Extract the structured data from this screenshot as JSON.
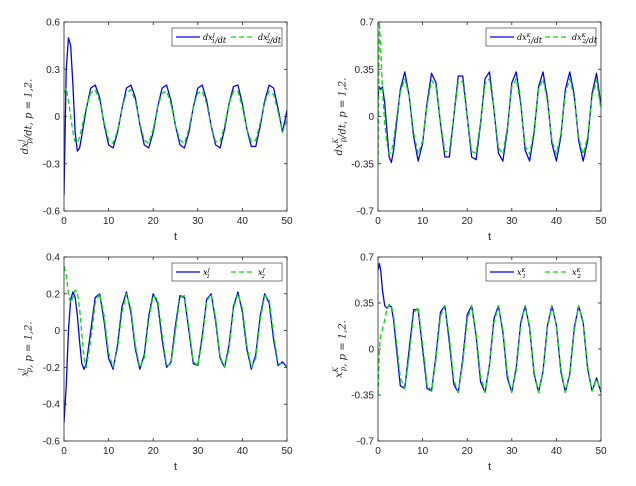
{
  "colors": {
    "series1": "#0000ff",
    "series2": "#00e000",
    "axis": "#262626"
  },
  "chart_data": [
    {
      "type": "line",
      "xlabel": "t",
      "ylabel": "dx_p^J/dt, p = 1,2.",
      "xlim": [
        0,
        50
      ],
      "ylim": [
        -0.6,
        0.6
      ],
      "xticks": [
        "0",
        "10",
        "20",
        "30",
        "40",
        "50"
      ],
      "yticks": [
        "-0.6",
        "-0.3",
        "0",
        "0.3",
        "0.6"
      ],
      "legend_position": "top-right",
      "series": [
        {
          "name": "dx_1^J/dt",
          "style": "solid",
          "x": [
            0,
            0.5,
            1,
            1.5,
            2,
            2.5,
            3,
            3.5,
            4,
            5,
            6,
            7,
            8,
            9,
            10,
            11,
            12,
            13,
            14,
            15,
            16,
            17,
            18,
            19,
            20,
            21,
            22,
            23,
            24,
            25,
            26,
            27,
            28,
            29,
            30,
            31,
            32,
            33,
            34,
            35,
            36,
            37,
            38,
            39,
            40,
            41,
            42,
            43,
            44,
            45,
            46,
            47,
            48,
            49,
            50
          ],
          "y": [
            -0.5,
            0.3,
            0.5,
            0.45,
            0.2,
            -0.1,
            -0.22,
            -0.2,
            -0.12,
            0.05,
            0.18,
            0.2,
            0.12,
            -0.05,
            -0.18,
            -0.2,
            -0.1,
            0.05,
            0.18,
            0.2,
            0.12,
            -0.05,
            -0.18,
            -0.2,
            -0.1,
            0.06,
            0.18,
            0.2,
            0.1,
            -0.06,
            -0.18,
            -0.2,
            -0.1,
            0.06,
            0.18,
            0.2,
            0.1,
            -0.06,
            -0.18,
            -0.2,
            -0.08,
            0.08,
            0.19,
            0.2,
            0.08,
            -0.08,
            -0.19,
            -0.19,
            -0.06,
            0.1,
            0.2,
            0.18,
            0.05,
            -0.1,
            0.04
          ]
        },
        {
          "name": "dx_2^J/dt",
          "style": "dashed",
          "x": [
            0,
            0.5,
            1,
            1.5,
            2,
            2.5,
            3,
            3.5,
            4,
            5,
            6,
            7,
            8,
            9,
            10,
            11,
            12,
            13,
            14,
            15,
            16,
            17,
            18,
            19,
            20,
            21,
            22,
            23,
            24,
            25,
            26,
            27,
            28,
            29,
            30,
            31,
            32,
            33,
            34,
            35,
            36,
            37,
            38,
            39,
            40,
            41,
            42,
            43,
            44,
            45,
            46,
            47,
            48,
            49,
            50
          ],
          "y": [
            0.15,
            0.18,
            0.1,
            0.0,
            -0.1,
            -0.16,
            -0.17,
            -0.13,
            -0.07,
            0.06,
            0.15,
            0.17,
            0.1,
            -0.04,
            -0.15,
            -0.17,
            -0.09,
            0.05,
            0.15,
            0.17,
            0.1,
            -0.04,
            -0.15,
            -0.17,
            -0.08,
            0.06,
            0.15,
            0.16,
            0.08,
            -0.06,
            -0.15,
            -0.17,
            -0.08,
            0.06,
            0.15,
            0.16,
            0.08,
            -0.06,
            -0.16,
            -0.16,
            -0.06,
            0.08,
            0.16,
            0.16,
            0.06,
            -0.08,
            -0.16,
            -0.15,
            -0.04,
            0.09,
            0.16,
            0.14,
            0.03,
            -0.1,
            -0.02
          ]
        }
      ]
    },
    {
      "type": "line",
      "xlabel": "t",
      "ylabel": "dx_p^K/dt, p = 1,2.",
      "xlim": [
        0,
        50
      ],
      "ylim": [
        -0.7,
        0.7
      ],
      "xticks": [
        "0",
        "10",
        "20",
        "30",
        "40",
        "50"
      ],
      "yticks": [
        "-0.7",
        "-0.35",
        "0",
        "0.35",
        "0.7"
      ],
      "legend_position": "top-right",
      "series": [
        {
          "name": "dx_1^K/dt",
          "style": "solid",
          "x": [
            0,
            0.3,
            0.6,
            1,
            1.5,
            2,
            2.5,
            3,
            3.5,
            4,
            5,
            6,
            7,
            8,
            9,
            10,
            11,
            12,
            13,
            14,
            15,
            16,
            17,
            18,
            19,
            20,
            21,
            22,
            23,
            24,
            25,
            26,
            27,
            28,
            29,
            30,
            31,
            32,
            33,
            34,
            35,
            36,
            37,
            38,
            39,
            40,
            41,
            42,
            43,
            44,
            45,
            46,
            47,
            48,
            49,
            50
          ],
          "y": [
            0.15,
            0.22,
            0.2,
            0.22,
            0.1,
            -0.1,
            -0.3,
            -0.34,
            -0.25,
            -0.1,
            0.2,
            0.33,
            0.15,
            -0.15,
            -0.33,
            -0.2,
            0.1,
            0.32,
            0.25,
            -0.05,
            -0.3,
            -0.3,
            0.0,
            0.3,
            0.3,
            0.0,
            -0.3,
            -0.32,
            -0.05,
            0.28,
            0.33,
            0.05,
            -0.27,
            -0.33,
            -0.1,
            0.25,
            0.33,
            0.1,
            -0.25,
            -0.33,
            -0.12,
            0.22,
            0.33,
            0.13,
            -0.2,
            -0.33,
            -0.15,
            0.2,
            0.33,
            0.16,
            -0.18,
            -0.33,
            -0.18,
            0.17,
            0.32,
            0.08
          ]
        },
        {
          "name": "dx_2^K/dt",
          "style": "dashed",
          "x": [
            0,
            0.3,
            0.6,
            1,
            1.5,
            2,
            2.5,
            3,
            3.5,
            4,
            5,
            6,
            7,
            8,
            9,
            10,
            11,
            12,
            13,
            14,
            15,
            16,
            17,
            18,
            19,
            20,
            21,
            22,
            23,
            24,
            25,
            26,
            27,
            28,
            29,
            30,
            31,
            32,
            33,
            34,
            35,
            36,
            37,
            38,
            39,
            40,
            41,
            42,
            43,
            44,
            45,
            46,
            47,
            48,
            49,
            50
          ],
          "y": [
            -0.35,
            0.7,
            0.5,
            0.2,
            -0.05,
            -0.2,
            -0.28,
            -0.26,
            -0.18,
            -0.05,
            0.18,
            0.28,
            0.15,
            -0.12,
            -0.28,
            -0.18,
            0.08,
            0.27,
            0.22,
            -0.04,
            -0.26,
            -0.26,
            0.0,
            0.26,
            0.26,
            0.0,
            -0.26,
            -0.27,
            -0.04,
            0.24,
            0.28,
            0.05,
            -0.23,
            -0.28,
            -0.08,
            0.22,
            0.28,
            0.09,
            -0.22,
            -0.28,
            -0.1,
            0.2,
            0.28,
            0.11,
            -0.18,
            -0.28,
            -0.13,
            0.17,
            0.28,
            0.14,
            -0.16,
            -0.28,
            -0.15,
            0.15,
            0.27,
            0.05
          ]
        }
      ]
    },
    {
      "type": "line",
      "xlabel": "t",
      "ylabel": "x_p^J, p = 1,2.",
      "xlim": [
        0,
        50
      ],
      "ylim": [
        -0.6,
        0.4
      ],
      "xticks": [
        "0",
        "10",
        "20",
        "30",
        "40",
        "50"
      ],
      "yticks": [
        "-0.6",
        "-0.4",
        "-0.2",
        "0",
        "0.2",
        "0.4"
      ],
      "legend_position": "top-right",
      "series": [
        {
          "name": "x_1^J",
          "style": "solid",
          "x": [
            0,
            0.5,
            1,
            1.5,
            2,
            2.5,
            3,
            3.5,
            4,
            4.5,
            5,
            6,
            7,
            8,
            9,
            10,
            11,
            12,
            13,
            14,
            15,
            16,
            17,
            18,
            19,
            20,
            21,
            22,
            23,
            24,
            25,
            26,
            27,
            28,
            29,
            30,
            31,
            32,
            33,
            34,
            35,
            36,
            37,
            38,
            39,
            40,
            41,
            42,
            43,
            44,
            45,
            46,
            47,
            48,
            49,
            50
          ],
          "y": [
            -0.5,
            -0.3,
            0.0,
            0.17,
            0.21,
            0.18,
            0.08,
            -0.06,
            -0.18,
            -0.21,
            -0.18,
            0.0,
            0.18,
            0.2,
            0.05,
            -0.15,
            -0.21,
            -0.08,
            0.13,
            0.21,
            0.1,
            -0.1,
            -0.21,
            -0.13,
            0.08,
            0.2,
            0.15,
            -0.05,
            -0.2,
            -0.17,
            0.03,
            0.19,
            0.18,
            0.0,
            -0.18,
            -0.19,
            -0.03,
            0.17,
            0.2,
            0.05,
            -0.15,
            -0.2,
            -0.08,
            0.13,
            0.21,
            0.1,
            -0.1,
            -0.21,
            -0.13,
            0.08,
            0.2,
            0.15,
            -0.05,
            -0.19,
            -0.17,
            -0.2
          ]
        },
        {
          "name": "x_2^J",
          "style": "dashed",
          "x": [
            0,
            0.5,
            1,
            1.5,
            2,
            2.5,
            3,
            3.5,
            4,
            4.5,
            5,
            6,
            7,
            8,
            9,
            10,
            11,
            12,
            13,
            14,
            15,
            16,
            17,
            18,
            19,
            20,
            21,
            22,
            23,
            24,
            25,
            26,
            27,
            28,
            29,
            30,
            31,
            32,
            33,
            34,
            35,
            36,
            37,
            38,
            39,
            40,
            41,
            42,
            43,
            44,
            45,
            46,
            47,
            48,
            49,
            50
          ],
          "y": [
            0.35,
            0.3,
            0.2,
            0.15,
            0.18,
            0.22,
            0.21,
            0.12,
            -0.02,
            -0.15,
            -0.2,
            -0.05,
            0.15,
            0.2,
            0.08,
            -0.12,
            -0.2,
            -0.1,
            0.1,
            0.2,
            0.12,
            -0.08,
            -0.2,
            -0.15,
            0.06,
            0.19,
            0.17,
            -0.02,
            -0.19,
            -0.18,
            0.0,
            0.18,
            0.19,
            0.02,
            -0.17,
            -0.19,
            -0.05,
            0.16,
            0.2,
            0.07,
            -0.14,
            -0.2,
            -0.1,
            0.12,
            0.2,
            0.12,
            -0.08,
            -0.2,
            -0.15,
            0.06,
            0.19,
            0.17,
            -0.02,
            -0.18,
            -0.18,
            -0.2
          ]
        }
      ]
    },
    {
      "type": "line",
      "xlabel": "t",
      "ylabel": "x_p^K, p = 1,2.",
      "xlim": [
        0,
        50
      ],
      "ylim": [
        -0.7,
        0.7
      ],
      "xticks": [
        "0",
        "10",
        "20",
        "30",
        "40",
        "50"
      ],
      "yticks": [
        "-0.7",
        "-0.35",
        "0",
        "0.35",
        "0.7"
      ],
      "legend_position": "top-right",
      "series": [
        {
          "name": "x_1^K",
          "style": "solid",
          "x": [
            0,
            0.3,
            0.6,
            1,
            1.5,
            2,
            2.5,
            3,
            3.5,
            4,
            5,
            6,
            7,
            8,
            9,
            10,
            11,
            12,
            13,
            14,
            15,
            16,
            17,
            18,
            19,
            20,
            21,
            22,
            23,
            24,
            25,
            26,
            27,
            28,
            29,
            30,
            31,
            32,
            33,
            34,
            35,
            36,
            37,
            38,
            39,
            40,
            41,
            42,
            43,
            44,
            45,
            46,
            47,
            48,
            49,
            50
          ],
          "y": [
            0.6,
            0.65,
            0.6,
            0.45,
            0.33,
            0.31,
            0.33,
            0.32,
            0.22,
            0.05,
            -0.28,
            -0.3,
            0.0,
            0.3,
            0.3,
            0.0,
            -0.3,
            -0.32,
            -0.05,
            0.28,
            0.33,
            0.05,
            -0.27,
            -0.33,
            -0.08,
            0.26,
            0.33,
            0.1,
            -0.25,
            -0.33,
            -0.12,
            0.23,
            0.33,
            0.13,
            -0.22,
            -0.33,
            -0.14,
            0.2,
            0.33,
            0.16,
            -0.19,
            -0.33,
            -0.17,
            0.18,
            0.33,
            0.18,
            -0.17,
            -0.33,
            -0.19,
            0.16,
            0.33,
            0.2,
            -0.15,
            -0.32,
            -0.22,
            -0.33
          ]
        },
        {
          "name": "x_2^K",
          "style": "dashed",
          "x": [
            0,
            0.3,
            0.6,
            1,
            1.5,
            2,
            2.5,
            3,
            3.5,
            4,
            5,
            6,
            7,
            8,
            9,
            10,
            11,
            12,
            13,
            14,
            15,
            16,
            17,
            18,
            19,
            20,
            21,
            22,
            23,
            24,
            25,
            26,
            27,
            28,
            29,
            30,
            31,
            32,
            33,
            34,
            35,
            36,
            37,
            38,
            39,
            40,
            41,
            42,
            43,
            44,
            45,
            46,
            47,
            48,
            49,
            50
          ],
          "y": [
            -0.35,
            0.0,
            0.1,
            0.15,
            0.22,
            0.3,
            0.34,
            0.33,
            0.25,
            0.1,
            -0.22,
            -0.3,
            -0.05,
            0.27,
            0.32,
            0.04,
            -0.27,
            -0.32,
            -0.08,
            0.25,
            0.33,
            0.09,
            -0.24,
            -0.33,
            -0.11,
            0.22,
            0.33,
            0.12,
            -0.21,
            -0.33,
            -0.13,
            0.2,
            0.33,
            0.15,
            -0.19,
            -0.33,
            -0.16,
            0.18,
            0.33,
            0.17,
            -0.17,
            -0.33,
            -0.18,
            0.16,
            0.33,
            0.19,
            -0.15,
            -0.33,
            -0.2,
            0.14,
            0.33,
            0.21,
            -0.13,
            -0.32,
            -0.23,
            -0.32
          ]
        }
      ]
    }
  ]
}
